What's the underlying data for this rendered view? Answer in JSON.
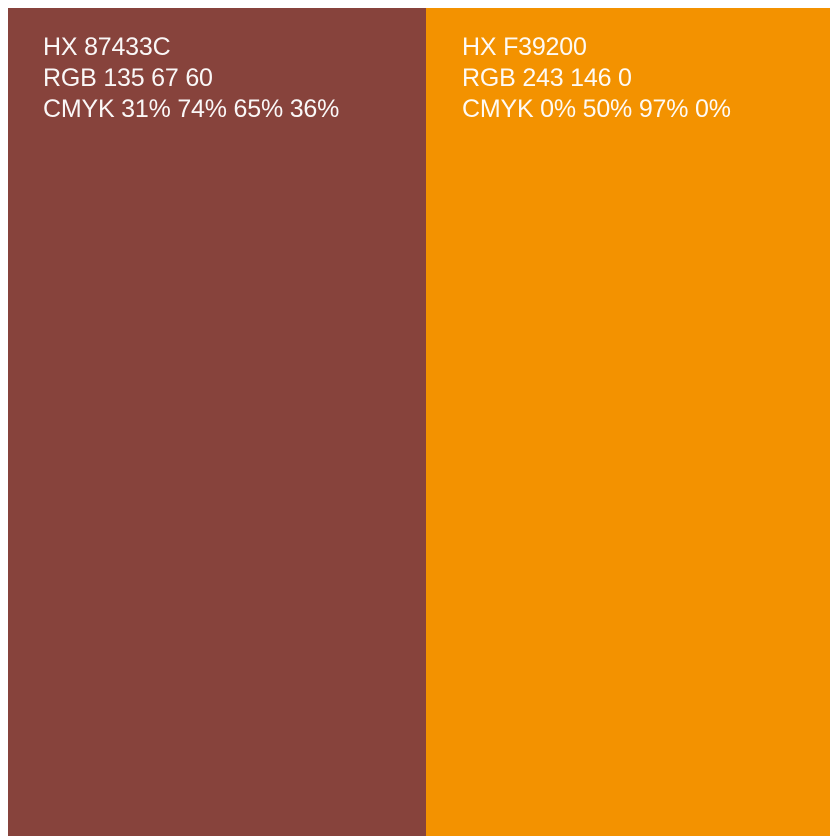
{
  "swatches": [
    {
      "color": "#87433C",
      "hex_label": "HX 87433C",
      "rgb_label": "RGB 135 67 60",
      "cmyk_label": "CMYK 31% 74% 65% 36%"
    },
    {
      "color": "#F39200",
      "hex_label": "HX F39200",
      "rgb_label": "RGB 243 146 0",
      "cmyk_label": "CMYK 0% 50% 97% 0%"
    }
  ]
}
